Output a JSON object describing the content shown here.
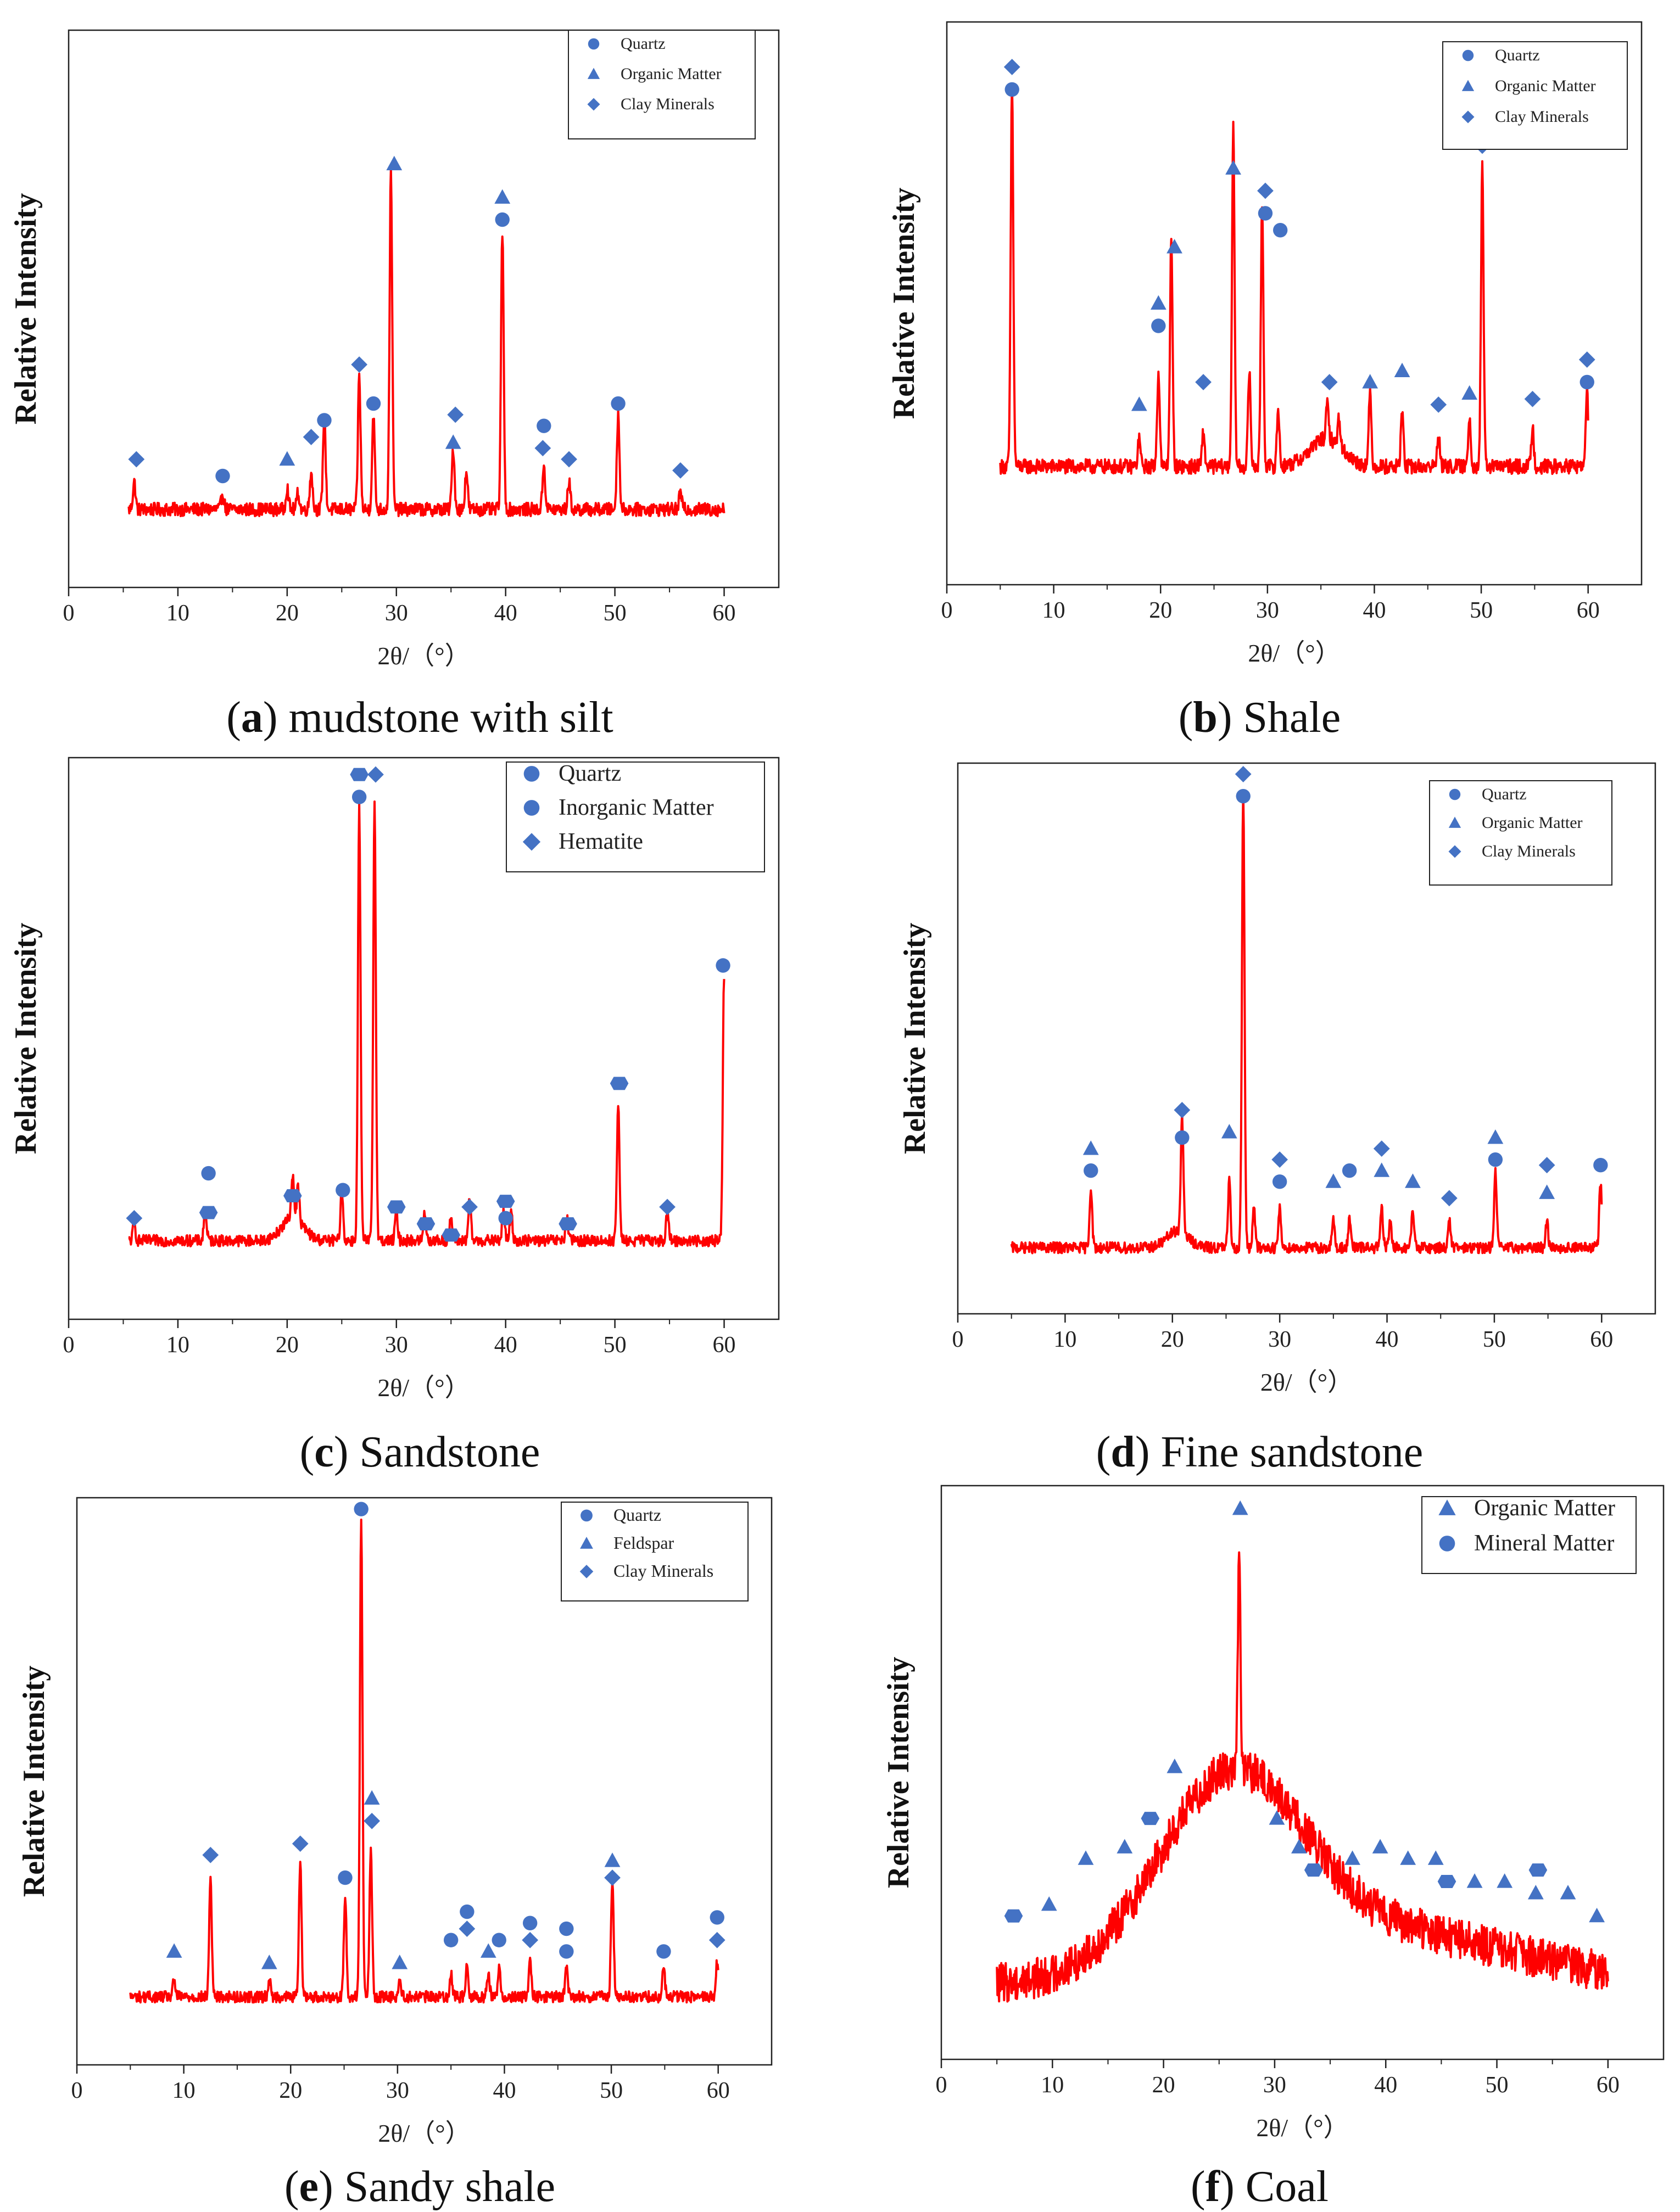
{
  "colors": {
    "trace": "#ff0000",
    "marker": "#4472c4",
    "axis": "#222222"
  },
  "common": {
    "xlabel": "2θ/（°）",
    "ylabel": "Relative Intensity"
  },
  "chart_data": [
    {
      "id": "a",
      "type": "line",
      "caption_letter": "a",
      "caption_text": "mudstone with silt",
      "xlim": [
        0,
        65
      ],
      "xticks": [
        0,
        10,
        20,
        30,
        40,
        50,
        60
      ],
      "xlabel": "2θ/（°）",
      "ylabel": "Relative Intensity",
      "ylim": [
        0,
        100
      ],
      "baseline": 14,
      "range": [
        5.5,
        60
      ],
      "noise": 1.2,
      "bumps": [],
      "peaks": [
        [
          6,
          5
        ],
        [
          14.1,
          3
        ],
        [
          20,
          4
        ],
        [
          21,
          3
        ],
        [
          22.2,
          7
        ],
        [
          23.4,
          17
        ],
        [
          26.6,
          24
        ],
        [
          27.9,
          17
        ],
        [
          29.5,
          61
        ],
        [
          35.2,
          11
        ],
        [
          36.4,
          7
        ],
        [
          39.7,
          50
        ],
        [
          43.5,
          8
        ],
        [
          45.8,
          5
        ],
        [
          50.3,
          17
        ],
        [
          56,
          3
        ]
      ],
      "legend": [
        {
          "label": "Quartz",
          "marker": "circle"
        },
        {
          "label": "Organic Matter",
          "marker": "triangle"
        },
        {
          "label": "Clay Minerals",
          "marker": "diamond"
        }
      ],
      "markers": [
        {
          "x": 6.2,
          "y": 23,
          "m": "diamond"
        },
        {
          "x": 14.1,
          "y": 20,
          "m": "circle"
        },
        {
          "x": 20,
          "y": 23,
          "m": "triangle"
        },
        {
          "x": 22.2,
          "y": 27,
          "m": "diamond"
        },
        {
          "x": 23.4,
          "y": 30,
          "m": "circle"
        },
        {
          "x": 26.6,
          "y": 40,
          "m": "diamond"
        },
        {
          "x": 27.9,
          "y": 33,
          "m": "circle"
        },
        {
          "x": 29.8,
          "y": 76,
          "m": "triangle"
        },
        {
          "x": 35.4,
          "y": 31,
          "m": "diamond"
        },
        {
          "x": 35.2,
          "y": 26,
          "m": "triangle"
        },
        {
          "x": 39.7,
          "y": 66,
          "m": "circle"
        },
        {
          "x": 39.7,
          "y": 70,
          "m": "triangle"
        },
        {
          "x": 43.5,
          "y": 29,
          "m": "circle"
        },
        {
          "x": 43.4,
          "y": 25,
          "m": "diamond"
        },
        {
          "x": 45.8,
          "y": 23,
          "m": "diamond"
        },
        {
          "x": 50.3,
          "y": 33,
          "m": "circle"
        },
        {
          "x": 56,
          "y": 21,
          "m": "diamond"
        }
      ]
    },
    {
      "id": "b",
      "type": "line",
      "caption_letter": "b",
      "caption_text": "Shale",
      "xlim": [
        0,
        65
      ],
      "xticks": [
        0,
        10,
        20,
        30,
        40,
        50,
        60
      ],
      "xlabel": "2θ/（°）",
      "ylabel": "Relative Intensity",
      "ylim": [
        0,
        100
      ],
      "baseline": 21,
      "range": [
        5,
        60
      ],
      "noise": 1.3,
      "bumps": [
        [
          35.5,
          5,
          1.5
        ]
      ],
      "peaks": [
        [
          6.1,
          68
        ],
        [
          18,
          5
        ],
        [
          19.8,
          17
        ],
        [
          21,
          40
        ],
        [
          24,
          6
        ],
        [
          26.8,
          60
        ],
        [
          28.3,
          17
        ],
        [
          29.5,
          47
        ],
        [
          31,
          10
        ],
        [
          35.6,
          6
        ],
        [
          36.7,
          5
        ],
        [
          39.6,
          13
        ],
        [
          42.6,
          10
        ],
        [
          46,
          6
        ],
        [
          48.9,
          9
        ],
        [
          50.1,
          53
        ],
        [
          54.8,
          7
        ],
        [
          59.9,
          13
        ]
      ],
      "legend": [
        {
          "label": "Quartz",
          "marker": "circle"
        },
        {
          "label": "Organic Matter",
          "marker": "triangle"
        },
        {
          "label": "Clay Minerals",
          "marker": "diamond"
        }
      ],
      "markers": [
        {
          "x": 6.1,
          "y": 92,
          "m": "diamond"
        },
        {
          "x": 6.1,
          "y": 88,
          "m": "circle"
        },
        {
          "x": 18,
          "y": 32,
          "m": "triangle"
        },
        {
          "x": 19.8,
          "y": 50,
          "m": "triangle"
        },
        {
          "x": 19.8,
          "y": 46,
          "m": "circle"
        },
        {
          "x": 21.3,
          "y": 60,
          "m": "triangle"
        },
        {
          "x": 24,
          "y": 36,
          "m": "diamond"
        },
        {
          "x": 26.8,
          "y": 74,
          "m": "triangle"
        },
        {
          "x": 29.8,
          "y": 70,
          "m": "diamond"
        },
        {
          "x": 29.8,
          "y": 66,
          "m": "circle"
        },
        {
          "x": 31.2,
          "y": 63,
          "m": "circle"
        },
        {
          "x": 35.8,
          "y": 36,
          "m": "diamond"
        },
        {
          "x": 39.6,
          "y": 36,
          "m": "triangle"
        },
        {
          "x": 42.6,
          "y": 38,
          "m": "triangle"
        },
        {
          "x": 46,
          "y": 32,
          "m": "diamond"
        },
        {
          "x": 48.9,
          "y": 34,
          "m": "triangle"
        },
        {
          "x": 50.1,
          "y": 78,
          "m": "diamond"
        },
        {
          "x": 54.8,
          "y": 33,
          "m": "diamond"
        },
        {
          "x": 59.9,
          "y": 40,
          "m": "diamond"
        },
        {
          "x": 59.9,
          "y": 36,
          "m": "circle"
        }
      ]
    },
    {
      "id": "c",
      "type": "line",
      "caption_letter": "c",
      "caption_text": "Sandstone",
      "xlim": [
        0,
        65
      ],
      "xticks": [
        0,
        10,
        20,
        30,
        40,
        50,
        60
      ],
      "xlabel": "2θ/（°）",
      "ylabel": "Relative Intensity",
      "ylim": [
        0,
        100
      ],
      "baseline": 14,
      "range": [
        5.5,
        60
      ],
      "noise": 1.0,
      "bumps": [
        [
          20.5,
          4,
          1
        ]
      ],
      "peaks": [
        [
          6,
          3
        ],
        [
          12.5,
          6
        ],
        [
          20.5,
          8
        ],
        [
          21,
          6
        ],
        [
          25,
          9
        ],
        [
          26.6,
          77
        ],
        [
          28,
          78
        ],
        [
          30,
          5
        ],
        [
          32.6,
          5
        ],
        [
          35,
          4
        ],
        [
          36.7,
          7
        ],
        [
          39.8,
          5
        ],
        [
          40.5,
          5
        ],
        [
          45.6,
          4
        ],
        [
          50.3,
          24
        ],
        [
          54.8,
          5
        ],
        [
          60,
          47
        ]
      ],
      "legend": [
        {
          "label": "Quartz",
          "marker": "circle"
        },
        {
          "label": "Inorganic Matter",
          "marker": "circle"
        },
        {
          "label": "Hematite",
          "marker": "diamond"
        }
      ],
      "markers": [
        {
          "x": 6,
          "y": 18,
          "m": "diamond"
        },
        {
          "x": 12.8,
          "y": 26,
          "m": "circle"
        },
        {
          "x": 12.8,
          "y": 19,
          "m": "hexagon"
        },
        {
          "x": 20.5,
          "y": 22,
          "m": "hexagon"
        },
        {
          "x": 25.1,
          "y": 23,
          "m": "circle"
        },
        {
          "x": 26.6,
          "y": 97,
          "m": "hexagon"
        },
        {
          "x": 26.6,
          "y": 93,
          "m": "circle"
        },
        {
          "x": 28.1,
          "y": 97,
          "m": "diamond"
        },
        {
          "x": 30,
          "y": 20,
          "m": "hexagon"
        },
        {
          "x": 32.7,
          "y": 17,
          "m": "hexagon"
        },
        {
          "x": 35,
          "y": 15,
          "m": "hexagon"
        },
        {
          "x": 36.7,
          "y": 20,
          "m": "diamond"
        },
        {
          "x": 40,
          "y": 21,
          "m": "hexagon"
        },
        {
          "x": 40,
          "y": 18,
          "m": "circle"
        },
        {
          "x": 45.7,
          "y": 17,
          "m": "hexagon"
        },
        {
          "x": 50.4,
          "y": 42,
          "m": "hexagon"
        },
        {
          "x": 54.8,
          "y": 20,
          "m": "diamond"
        },
        {
          "x": 59.9,
          "y": 63,
          "m": "circle"
        }
      ]
    },
    {
      "id": "d",
      "type": "line",
      "caption_letter": "d",
      "caption_text": "Fine sandstone",
      "xlim": [
        0,
        65
      ],
      "xticks": [
        0,
        10,
        20,
        30,
        40,
        50,
        60
      ],
      "xlabel": "2θ/（°）",
      "ylabel": "Relative Intensity",
      "ylim": [
        0,
        100
      ],
      "baseline": 12,
      "range": [
        5,
        60
      ],
      "noise": 1.0,
      "bumps": [
        [
          20.5,
          3,
          1
        ]
      ],
      "peaks": [
        [
          12.4,
          11
        ],
        [
          20.9,
          21
        ],
        [
          25.3,
          12
        ],
        [
          26.6,
          83
        ],
        [
          27.6,
          7
        ],
        [
          30,
          7
        ],
        [
          35,
          5
        ],
        [
          36.5,
          5
        ],
        [
          39.5,
          7
        ],
        [
          40.3,
          5
        ],
        [
          42.4,
          7
        ],
        [
          45.8,
          5
        ],
        [
          50.1,
          14
        ],
        [
          54.9,
          5
        ],
        [
          59.9,
          12
        ]
      ],
      "legend": [
        {
          "label": "Quartz",
          "marker": "circle"
        },
        {
          "label": "Organic Matter",
          "marker": "triangle"
        },
        {
          "label": "Clay Minerals",
          "marker": "diamond"
        }
      ],
      "markers": [
        {
          "x": 12.4,
          "y": 30,
          "m": "triangle"
        },
        {
          "x": 12.4,
          "y": 26,
          "m": "circle"
        },
        {
          "x": 20.9,
          "y": 37,
          "m": "diamond"
        },
        {
          "x": 20.9,
          "y": 32,
          "m": "circle"
        },
        {
          "x": 25.3,
          "y": 33,
          "m": "triangle"
        },
        {
          "x": 26.6,
          "y": 98,
          "m": "diamond"
        },
        {
          "x": 26.6,
          "y": 94,
          "m": "circle"
        },
        {
          "x": 30,
          "y": 28,
          "m": "diamond"
        },
        {
          "x": 30,
          "y": 24,
          "m": "circle"
        },
        {
          "x": 35,
          "y": 24,
          "m": "triangle"
        },
        {
          "x": 36.5,
          "y": 26,
          "m": "circle"
        },
        {
          "x": 39.5,
          "y": 30,
          "m": "diamond"
        },
        {
          "x": 39.5,
          "y": 26,
          "m": "triangle"
        },
        {
          "x": 42.4,
          "y": 24,
          "m": "triangle"
        },
        {
          "x": 45.8,
          "y": 21,
          "m": "diamond"
        },
        {
          "x": 50.1,
          "y": 32,
          "m": "triangle"
        },
        {
          "x": 50.1,
          "y": 28,
          "m": "circle"
        },
        {
          "x": 54.9,
          "y": 27,
          "m": "diamond"
        },
        {
          "x": 54.9,
          "y": 22,
          "m": "triangle"
        },
        {
          "x": 59.9,
          "y": 27,
          "m": "circle"
        }
      ]
    },
    {
      "id": "e",
      "type": "line",
      "caption_letter": "e",
      "caption_text": "Sandy shale",
      "xlim": [
        0,
        65
      ],
      "xticks": [
        0,
        10,
        20,
        30,
        40,
        50,
        60
      ],
      "xlabel": "2θ/（°）",
      "ylabel": "Relative Intensity",
      "ylim": [
        0,
        100
      ],
      "baseline": 12,
      "range": [
        5,
        60
      ],
      "noise": 1.0,
      "bumps": [],
      "peaks": [
        [
          9.1,
          3
        ],
        [
          12.5,
          21
        ],
        [
          18,
          3
        ],
        [
          20.9,
          24
        ],
        [
          25.1,
          18
        ],
        [
          26.6,
          85
        ],
        [
          27.5,
          26
        ],
        [
          30.2,
          3
        ],
        [
          35,
          4
        ],
        [
          36.5,
          6
        ],
        [
          38.5,
          4
        ],
        [
          39.5,
          5
        ],
        [
          42.4,
          6
        ],
        [
          45.8,
          5
        ],
        [
          50.1,
          21
        ],
        [
          54.9,
          5
        ],
        [
          59.9,
          6
        ]
      ],
      "legend": [
        {
          "label": "Quartz",
          "marker": "circle"
        },
        {
          "label": "Feldspar",
          "marker": "triangle"
        },
        {
          "label": "Clay Minerals",
          "marker": "diamond"
        }
      ],
      "markers": [
        {
          "x": 9.1,
          "y": 20,
          "m": "triangle"
        },
        {
          "x": 12.5,
          "y": 37,
          "m": "diamond"
        },
        {
          "x": 18,
          "y": 18,
          "m": "triangle"
        },
        {
          "x": 20.9,
          "y": 39,
          "m": "diamond"
        },
        {
          "x": 25.1,
          "y": 33,
          "m": "circle"
        },
        {
          "x": 26.6,
          "y": 98,
          "m": "circle"
        },
        {
          "x": 27.6,
          "y": 47,
          "m": "triangle"
        },
        {
          "x": 27.6,
          "y": 43,
          "m": "diamond"
        },
        {
          "x": 30.2,
          "y": 18,
          "m": "triangle"
        },
        {
          "x": 35,
          "y": 22,
          "m": "circle"
        },
        {
          "x": 36.5,
          "y": 27,
          "m": "circle"
        },
        {
          "x": 36.5,
          "y": 24,
          "m": "diamond"
        },
        {
          "x": 38.5,
          "y": 20,
          "m": "triangle"
        },
        {
          "x": 39.5,
          "y": 22,
          "m": "circle"
        },
        {
          "x": 42.4,
          "y": 25,
          "m": "circle"
        },
        {
          "x": 42.4,
          "y": 22,
          "m": "diamond"
        },
        {
          "x": 45.8,
          "y": 24,
          "m": "circle"
        },
        {
          "x": 45.8,
          "y": 20,
          "m": "circle"
        },
        {
          "x": 50.1,
          "y": 36,
          "m": "triangle"
        },
        {
          "x": 50.1,
          "y": 33,
          "m": "diamond"
        },
        {
          "x": 54.9,
          "y": 20,
          "m": "circle"
        },
        {
          "x": 59.9,
          "y": 26,
          "m": "circle"
        },
        {
          "x": 59.9,
          "y": 22,
          "m": "diamond"
        }
      ]
    },
    {
      "id": "f",
      "type": "line",
      "caption_letter": "f",
      "caption_text": "Coal",
      "xlim": [
        0,
        65
      ],
      "xticks": [
        0,
        10,
        20,
        30,
        40,
        50,
        60
      ],
      "xlabel": "2θ/（°）",
      "ylabel": "Relative Intensity",
      "ylim": [
        0,
        100
      ],
      "baseline": 13,
      "range": [
        5,
        60
      ],
      "noise": 3.5,
      "bumps": [
        [
          26,
          33,
          6.5
        ],
        [
          40,
          9,
          12
        ]
      ],
      "peaks": [
        [
          26.8,
          36
        ]
      ],
      "legend": [
        {
          "label": "Organic Matter",
          "marker": "triangle"
        },
        {
          "label": "Mineral Matter",
          "marker": "circle"
        }
      ],
      "markers": [
        {
          "x": 6.5,
          "y": 25,
          "m": "hexagon"
        },
        {
          "x": 9.7,
          "y": 27,
          "m": "triangle"
        },
        {
          "x": 13,
          "y": 35,
          "m": "triangle"
        },
        {
          "x": 16.5,
          "y": 37,
          "m": "triangle"
        },
        {
          "x": 18.8,
          "y": 42,
          "m": "hexagon"
        },
        {
          "x": 21,
          "y": 51,
          "m": "triangle"
        },
        {
          "x": 26.9,
          "y": 96,
          "m": "triangle"
        },
        {
          "x": 30.2,
          "y": 42,
          "m": "triangle"
        },
        {
          "x": 32.2,
          "y": 37,
          "m": "triangle"
        },
        {
          "x": 33.5,
          "y": 33,
          "m": "hexagon"
        },
        {
          "x": 37,
          "y": 35,
          "m": "triangle"
        },
        {
          "x": 39.5,
          "y": 37,
          "m": "triangle"
        },
        {
          "x": 42,
          "y": 35,
          "m": "triangle"
        },
        {
          "x": 44.5,
          "y": 35,
          "m": "triangle"
        },
        {
          "x": 45.5,
          "y": 31,
          "m": "hexagon"
        },
        {
          "x": 48,
          "y": 31,
          "m": "triangle"
        },
        {
          "x": 50.7,
          "y": 31,
          "m": "triangle"
        },
        {
          "x": 53.7,
          "y": 33,
          "m": "hexagon"
        },
        {
          "x": 53.5,
          "y": 29,
          "m": "triangle"
        },
        {
          "x": 56.4,
          "y": 29,
          "m": "triangle"
        },
        {
          "x": 59,
          "y": 25,
          "m": "triangle"
        }
      ]
    }
  ]
}
